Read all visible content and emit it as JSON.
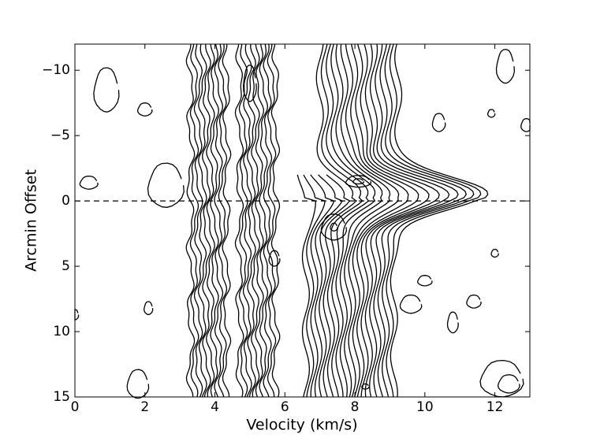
{
  "chart_data": {
    "type": "contour",
    "xlabel": "Velocity (km/s)",
    "ylabel": "Arcmin Offset",
    "xlim": [
      0,
      13
    ],
    "xticks": [
      0,
      2,
      4,
      6,
      8,
      10,
      12
    ],
    "ylim": [
      -12,
      15
    ],
    "y_inverted": true,
    "yticks": [
      {
        "value": -10,
        "label": "−10"
      },
      {
        "value": -5,
        "label": "−5"
      },
      0,
      5,
      10,
      15
    ],
    "hline": 0,
    "color": "#000000"
  }
}
